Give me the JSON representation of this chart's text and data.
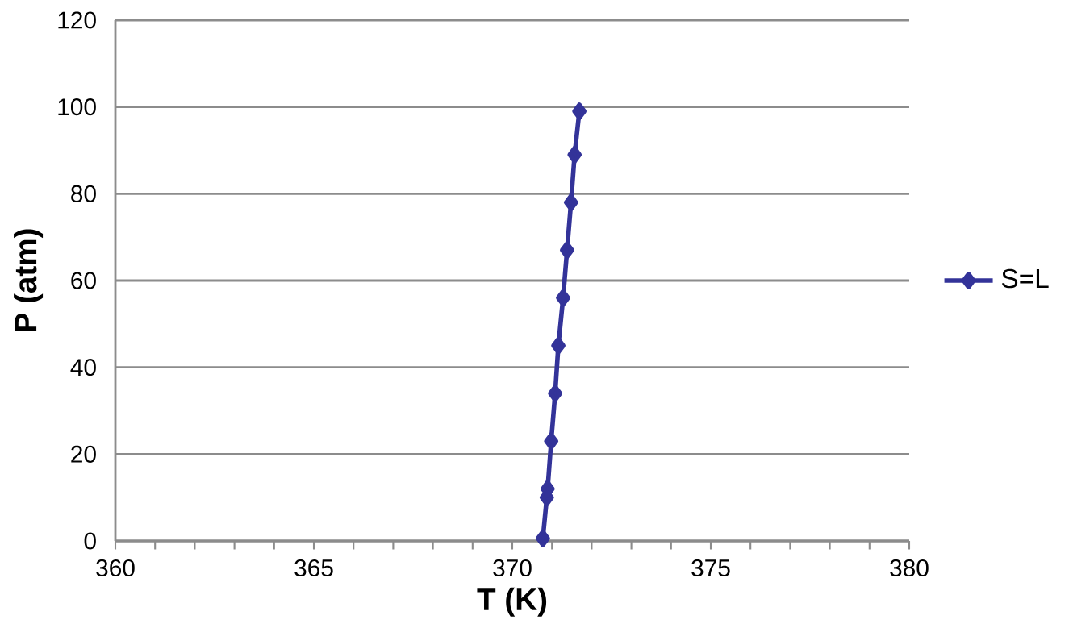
{
  "chart_data": {
    "type": "line",
    "xlabel": "T (K)",
    "ylabel": "P (atm)",
    "x": [
      370.77,
      370.87,
      370.89,
      370.98,
      371.08,
      371.16,
      371.28,
      371.38,
      371.48,
      371.57,
      371.69
    ],
    "series": [
      {
        "name": "S=L",
        "color": "#333399",
        "values": [
          0.6,
          10,
          12,
          23,
          34,
          45,
          56,
          67,
          78,
          89,
          99
        ]
      }
    ],
    "xlim": [
      360,
      380
    ],
    "ylim": [
      0,
      120
    ],
    "xticks": [
      360,
      365,
      370,
      375,
      380
    ],
    "yticks": [
      0,
      20,
      40,
      60,
      80,
      100,
      120
    ],
    "grid": "y",
    "legend": "right",
    "marker": "diamond",
    "line_style": "solid"
  }
}
